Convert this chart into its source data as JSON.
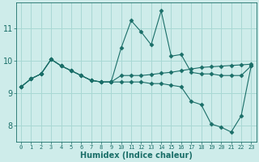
{
  "xlabel": "Humidex (Indice chaleur)",
  "background_color": "#ceecea",
  "grid_color": "#a8d8d4",
  "line_color": "#1a6e68",
  "xlim": [
    -0.5,
    23.5
  ],
  "ylim": [
    7.5,
    11.8
  ],
  "yticks": [
    8,
    9,
    10,
    11
  ],
  "xticks": [
    0,
    1,
    2,
    3,
    4,
    5,
    6,
    7,
    8,
    9,
    10,
    11,
    12,
    13,
    14,
    15,
    16,
    17,
    18,
    19,
    20,
    21,
    22,
    23
  ],
  "series": [
    [
      9.2,
      9.45,
      9.6,
      10.05,
      9.85,
      9.7,
      9.55,
      9.4,
      9.35,
      9.35,
      10.4,
      11.25,
      10.9,
      10.5,
      11.55,
      10.15,
      10.2,
      9.65,
      9.6,
      9.6,
      9.55,
      9.55,
      9.55,
      9.85
    ],
    [
      9.2,
      9.45,
      9.6,
      10.05,
      9.85,
      9.7,
      9.55,
      9.4,
      9.35,
      9.35,
      9.55,
      9.55,
      9.55,
      9.58,
      9.62,
      9.65,
      9.7,
      9.75,
      9.8,
      9.82,
      9.84,
      9.86,
      9.88,
      9.9
    ],
    [
      9.2,
      9.45,
      9.6,
      10.05,
      9.85,
      9.7,
      9.55,
      9.4,
      9.35,
      9.35,
      9.35,
      9.35,
      9.35,
      9.3,
      9.3,
      9.25,
      9.2,
      8.75,
      8.65,
      8.05,
      7.95,
      7.8,
      8.3,
      9.85
    ]
  ]
}
